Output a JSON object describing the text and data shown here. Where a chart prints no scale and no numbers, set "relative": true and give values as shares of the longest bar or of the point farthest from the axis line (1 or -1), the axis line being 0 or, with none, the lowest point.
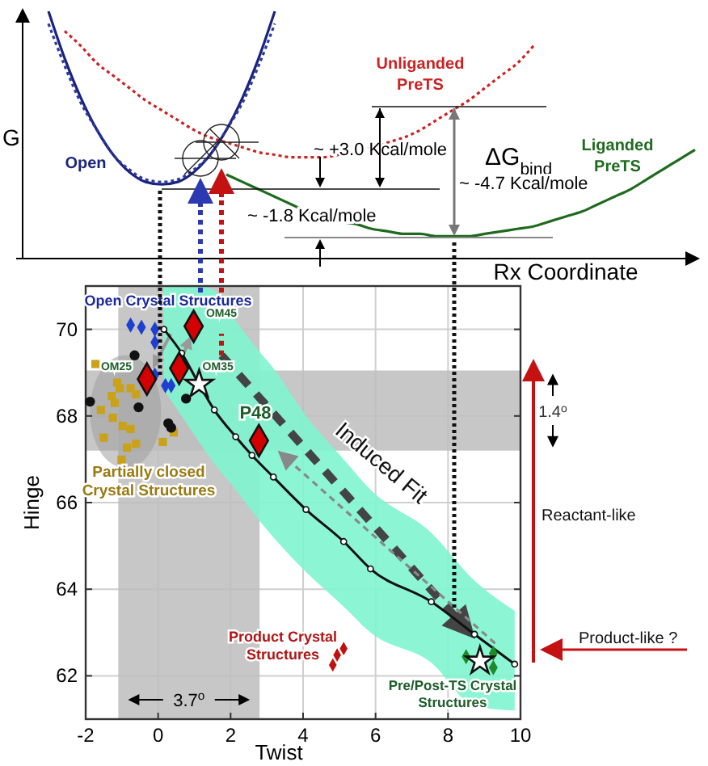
{
  "chart_data": [
    {
      "type": "line",
      "relative": true,
      "xlabel": "Rx Coordinate",
      "ylabel": "G",
      "categories": [
        null,
        null,
        null,
        null,
        null,
        null,
        null,
        null,
        null,
        null,
        null,
        null,
        null,
        null,
        null,
        null,
        null,
        null,
        null,
        null,
        null,
        null,
        null,
        null,
        null,
        null,
        null,
        null,
        null,
        null,
        null,
        null,
        null,
        null,
        null,
        null,
        null,
        null,
        null,
        null,
        null,
        null
      ],
      "series": [
        {
          "name": "Open",
          "color": "#1a237e",
          "line_style": "solid",
          "values": [
            null,
            1.0,
            0.81,
            0.65,
            0.52,
            0.42,
            0.35,
            0.31,
            0.3,
            0.31,
            0.35,
            0.42,
            0.52,
            0.65,
            0.81,
            1.0,
            null,
            null,
            null,
            null,
            null,
            null,
            null,
            null,
            null,
            null,
            null,
            null,
            null,
            null,
            null,
            null,
            null,
            null,
            null,
            null,
            null,
            null,
            null,
            null,
            null,
            null
          ]
        },
        {
          "color": "#2b3a9c",
          "line_style": "dotted",
          "values": [
            null,
            0.95,
            0.78,
            0.63,
            0.52,
            0.42,
            0.36,
            0.32,
            0.31,
            0.32,
            0.36,
            0.42,
            0.52,
            0.63,
            0.78,
            0.95,
            null,
            null,
            null,
            null,
            null,
            null,
            null,
            null,
            null,
            null,
            null,
            null,
            null,
            null,
            null,
            null,
            null,
            null,
            null,
            null,
            null,
            null,
            null,
            null,
            null,
            null
          ]
        },
        {
          "name": "Unliganded PreTS",
          "color": "#cc2222",
          "line_style": "dotted",
          "values": [
            null,
            null,
            0.92,
            0.86,
            0.79,
            0.74,
            0.69,
            0.64,
            0.6,
            0.56,
            0.52,
            0.49,
            0.47,
            0.45,
            0.43,
            0.42,
            0.41,
            0.41,
            0.41,
            0.42,
            0.43,
            0.45,
            0.47,
            0.49,
            0.52,
            0.56,
            0.6,
            0.64,
            0.69,
            0.74,
            0.79,
            0.86,
            null,
            null,
            null,
            null,
            null,
            null,
            null,
            null,
            null,
            null
          ]
        },
        {
          "name": "Liganded PreTS",
          "color": "#1e6b1e",
          "line_style": "solid",
          "values": [
            null,
            null,
            null,
            null,
            null,
            null,
            null,
            null,
            null,
            null,
            null,
            null,
            0.34,
            0.31,
            0.28,
            0.25,
            0.22,
            0.19,
            0.17,
            0.15,
            0.14,
            0.12,
            0.11,
            0.1,
            0.1,
            0.09,
            0.09,
            0.09,
            0.1,
            0.11,
            0.12,
            0.13,
            0.15,
            0.17,
            0.19,
            0.22,
            0.25,
            0.28,
            0.32,
            0.36,
            0.4,
            0.44
          ]
        }
      ],
      "annotations": [
        "~ +3.0 Kcal/mole",
        "ΔG$_{bind}$",
        "~ -4.7 Kcal/mole",
        "~ -1.8 Kcal/mole"
      ]
    },
    {
      "type": "scatter",
      "xlabel": "Twist",
      "ylabel": "Hinge",
      "xlim": [
        -2,
        10
      ],
      "ylim": [
        61,
        71
      ],
      "xticks": [
        -2,
        0,
        2,
        4,
        6,
        8,
        10
      ],
      "yticks": [
        62,
        64,
        66,
        68,
        70
      ],
      "grid": true,
      "series": [
        {
          "type": "line",
          "marker": "circle",
          "color": "#111111",
          "x": [
            0.16,
            0.65,
            1.13,
            1.55,
            2.14,
            2.59,
            3.18,
            4.08,
            5.12,
            5.86,
            7.54,
            8.73,
            9.84
          ],
          "values": [
            70.0,
            69.45,
            68.73,
            68.14,
            67.52,
            67.09,
            66.59,
            65.84,
            65.1,
            64.47,
            63.71,
            62.96,
            62.27
          ],
          "lower": [
            68.6,
            68.0,
            67.4,
            66.9,
            66.3,
            65.8,
            65.2,
            64.4,
            63.6,
            63.0,
            62.3,
            61.3,
            61.2
          ],
          "upper": [
            71,
            71,
            71,
            70.9,
            70.2,
            69.7,
            69.1,
            68.0,
            67.0,
            66.3,
            65.3,
            64.2,
            63.5
          ]
        },
        {
          "marker": "diamond",
          "color": "#1f3fd0",
          "x": [
            -0.76,
            -0.46,
            -0.09,
            -0.09,
            -0.09,
            0.2,
            0.36
          ],
          "values": [
            70.1,
            70.05,
            70.0,
            69.7,
            68.95,
            68.7,
            68.7
          ]
        },
        {
          "marker": "square",
          "color": "#c9a21a",
          "x": [
            -1.73,
            -1.13,
            -1.06,
            -0.76,
            -0.61,
            -1.28,
            -1.58,
            -1.25,
            -0.98,
            -0.76,
            -1.5,
            -0.61,
            -0.86,
            -1.01,
            0.13,
            0.43,
            -1.2
          ],
          "values": [
            69.2,
            68.77,
            68.64,
            68.64,
            68.5,
            68.46,
            68.14,
            67.96,
            67.77,
            67.7,
            67.5,
            67.36,
            67.27,
            66.99,
            67.4,
            67.62,
            68.3
          ]
        },
        {
          "marker": "circle",
          "color": "#111111",
          "x": [
            -1.88,
            -0.54,
            -0.65,
            0.28,
            0.36,
            0.77
          ],
          "values": [
            68.33,
            68.2,
            69.4,
            67.83,
            67.73,
            68.4
          ]
        },
        {
          "marker": "diamond",
          "color": "#c01010",
          "x": [
            4.82,
            4.94,
            5.12
          ],
          "values": [
            62.25,
            62.48,
            62.63
          ]
        },
        {
          "marker": "diamond",
          "color": "#1f8a2a",
          "x": [
            8.5,
            9.25,
            9.25
          ],
          "values": [
            62.44,
            62.52,
            62.19
          ]
        },
        {
          "marker": "diamond",
          "color": "#d40000",
          "x": [
            0.98,
            0.58,
            -0.31,
            2.78
          ],
          "values": [
            70.07,
            69.1,
            68.85,
            67.43
          ]
        },
        {
          "marker": "star",
          "color": "#ffffff",
          "x": [
            1.13,
            8.88
          ],
          "values": [
            68.73,
            62.34
          ]
        }
      ],
      "bands": [
        {
          "axis": "x",
          "from": -1.1,
          "to": 2.8,
          "label": "3.7$^{o}$",
          "color": "#bdbdbd"
        },
        {
          "axis": "y",
          "from": 67.2,
          "to": 69.05,
          "label": "1.4$^{o}$",
          "color": "#bdbdbd"
        }
      ],
      "annotations": [
        "Open Crystal  Structures",
        "OM45",
        {
          "text": "OM35",
          "x": 0.58,
          "y": 69.1
        },
        "OM25",
        "P48",
        "Partially closed\nCrystal  Structures",
        "Product Crystal\nStructures",
        "Pre/Post-TS Crystal\nStructures",
        "Induced Fit",
        "Reactant-like",
        "Product-like ?"
      ]
    }
  ]
}
